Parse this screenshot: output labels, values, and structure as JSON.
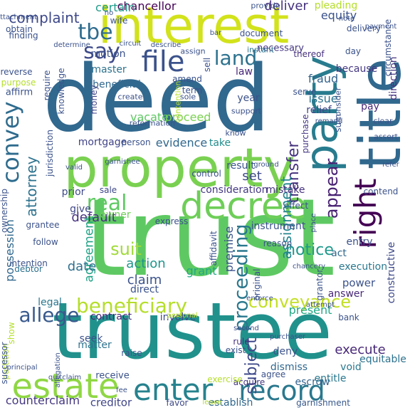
{
  "cloud": {
    "colors": {
      "background": "#ffffff",
      "deep_purple": "#440154",
      "indigo": "#3b528b",
      "slate_blue": "#31688e",
      "teal": "#21918c",
      "sea_green": "#35b779",
      "green": "#6ece58",
      "lime": "#b5de2b",
      "yellow": "#fde725"
    },
    "words": [
      {
        "text": "trust",
        "color": "#5ec962",
        "orient": "h"
      },
      {
        "text": "trustee",
        "color": "#21918c",
        "orient": "h"
      },
      {
        "text": "deed",
        "color": "#31688e",
        "orient": "h"
      },
      {
        "text": "property",
        "color": "#7ad151",
        "orient": "h"
      },
      {
        "text": "interest",
        "color": "#d2e21b",
        "orient": "h"
      },
      {
        "text": "title",
        "color": "#31688e",
        "orient": "v"
      },
      {
        "text": "decree",
        "color": "#6ece58",
        "orient": "h"
      },
      {
        "text": "party",
        "color": "#287c8e",
        "orient": "v"
      },
      {
        "text": "estate",
        "color": "#8fd744",
        "orient": "h"
      },
      {
        "text": "enter",
        "color": "#26828e",
        "orient": "h"
      },
      {
        "text": "record",
        "color": "#2a788e",
        "orient": "h"
      },
      {
        "text": "right",
        "color": "#440154",
        "orient": "v"
      },
      {
        "text": "beneficiary",
        "color": "#b5de2b",
        "orient": "h"
      },
      {
        "text": "conveyance",
        "color": "#c2df23",
        "orient": "h"
      },
      {
        "text": "file",
        "color": "#3b528b",
        "orient": "h"
      },
      {
        "text": "land",
        "color": "#2c728e",
        "orient": "h"
      },
      {
        "text": "say",
        "color": "#3e4a89",
        "orient": "h"
      },
      {
        "text": "tbe",
        "color": "#2f6c8e",
        "orient": "h"
      },
      {
        "text": "real",
        "color": "#5ec962",
        "orient": "h"
      },
      {
        "text": "convey",
        "color": "#2f6c8e",
        "orient": "v"
      },
      {
        "text": "proceeding",
        "color": "#2a788e",
        "orient": "v"
      },
      {
        "text": "transfer",
        "color": "#46327e",
        "orient": "v"
      },
      {
        "text": "notice",
        "color": "#1f988b",
        "orient": "h"
      },
      {
        "text": "suit",
        "color": "#a0da39",
        "orient": "h"
      },
      {
        "text": "allege",
        "color": "#38598c",
        "orient": "h"
      },
      {
        "text": "appear",
        "color": "#482173",
        "orient": "v"
      },
      {
        "text": "complaint",
        "color": "#3e4989",
        "orient": "h"
      },
      {
        "text": "chancellor",
        "color": "#440154",
        "orient": "h"
      },
      {
        "text": "deliver",
        "color": "#46327e",
        "orient": "h"
      },
      {
        "text": "equity",
        "color": "#3b528b",
        "orient": "h"
      },
      {
        "text": "attorney",
        "color": "#2c728e",
        "orient": "v"
      },
      {
        "text": "subject",
        "color": "#3e4989",
        "orient": "v"
      },
      {
        "text": "execute",
        "color": "#482878",
        "orient": "h"
      },
      {
        "text": "assignment",
        "color": "#25858e",
        "orient": "v"
      },
      {
        "text": "premise",
        "color": "#3b528b",
        "orient": "v"
      },
      {
        "text": "agreement",
        "color": "#20a386",
        "orient": "v"
      },
      {
        "text": "possession",
        "color": "#31688e",
        "orient": "v"
      },
      {
        "text": "default",
        "color": "#46327e",
        "orient": "h"
      },
      {
        "text": "evidence",
        "color": "#31688e",
        "orient": "h"
      },
      {
        "text": "take",
        "color": "#228d8d",
        "orient": "h"
      },
      {
        "text": "proceed",
        "color": "#7ad151",
        "orient": "h"
      },
      {
        "text": "vacate",
        "color": "#5ec962",
        "orient": "h"
      },
      {
        "text": "mortgage",
        "color": "#414487",
        "orient": "h"
      },
      {
        "text": "certain",
        "color": "#1e9b8a",
        "orient": "h"
      },
      {
        "text": "motion",
        "color": "#3b528b",
        "orient": "h"
      },
      {
        "text": "master",
        "color": "#2c728e",
        "orient": "h"
      },
      {
        "text": "beneficial",
        "color": "#31688e",
        "orient": "h"
      },
      {
        "text": "law",
        "color": "#482878",
        "orient": "h"
      },
      {
        "text": "fraud",
        "color": "#33638d",
        "orient": "h"
      },
      {
        "text": "because",
        "color": "#453781",
        "orient": "h"
      },
      {
        "text": "issue",
        "color": "#2c728e",
        "orient": "h"
      },
      {
        "text": "relief",
        "color": "#404688",
        "orient": "h"
      },
      {
        "text": "set",
        "color": "#3e4a89",
        "orient": "h"
      },
      {
        "text": "action",
        "color": "#1f958b",
        "orient": "h"
      },
      {
        "text": "claim",
        "color": "#3b528b",
        "orient": "h"
      },
      {
        "text": "grant",
        "color": "#22a884",
        "orient": "h"
      },
      {
        "text": "date",
        "color": "#2d708e",
        "orient": "h"
      },
      {
        "text": "owner",
        "color": "#6ece58",
        "orient": "h"
      },
      {
        "text": "give",
        "color": "#404688",
        "orient": "h"
      },
      {
        "text": "execution",
        "color": "#2a788e",
        "orient": "h"
      },
      {
        "text": "act",
        "color": "#31688e",
        "orient": "h"
      },
      {
        "text": "power",
        "color": "#3b528b",
        "orient": "h"
      },
      {
        "text": "answer",
        "color": "#482878",
        "orient": "h"
      },
      {
        "text": "constructive",
        "color": "#3e4989",
        "orient": "v"
      },
      {
        "text": "present",
        "color": "#22a884",
        "orient": "h"
      },
      {
        "text": "direct",
        "color": "#3b528b",
        "orient": "h"
      },
      {
        "text": "legal",
        "color": "#2a788e",
        "orient": "h"
      },
      {
        "text": "contract",
        "color": "#482878",
        "orient": "h"
      },
      {
        "text": "involve",
        "color": "#3e4a89",
        "orient": "h"
      },
      {
        "text": "seek",
        "color": "#3b528b",
        "orient": "h"
      },
      {
        "text": "matter",
        "color": "#2c728e",
        "orient": "h"
      },
      {
        "text": "deny",
        "color": "#3b528b",
        "orient": "h"
      },
      {
        "text": "dismiss",
        "color": "#31688e",
        "orient": "h"
      },
      {
        "text": "acquire",
        "color": "#453781",
        "orient": "h"
      },
      {
        "text": "escrow",
        "color": "#33638d",
        "orient": "h"
      },
      {
        "text": "entitle",
        "color": "#2a788e",
        "orient": "h"
      },
      {
        "text": "void",
        "color": "#2a788e",
        "orient": "h"
      },
      {
        "text": "equitable",
        "color": "#2c728e",
        "orient": "h"
      },
      {
        "text": "counterclaim",
        "color": "#453781",
        "orient": "h"
      },
      {
        "text": "creditor",
        "color": "#404688",
        "orient": "h"
      },
      {
        "text": "favor",
        "color": "#3e4a89",
        "orient": "h"
      },
      {
        "text": "establish",
        "color": "#31688e",
        "orient": "h"
      },
      {
        "text": "garnishment",
        "color": "#38598c",
        "orient": "h"
      },
      {
        "text": "receive",
        "color": "#3b528b",
        "orient": "h"
      },
      {
        "text": "rule",
        "color": "#46327e",
        "orient": "h"
      },
      {
        "text": "partition",
        "color": "#b5de2b",
        "orient": "v"
      },
      {
        "text": "consideration",
        "color": "#443983",
        "orient": "h"
      },
      {
        "text": "mistake",
        "color": "#46327e",
        "orient": "h"
      },
      {
        "text": "result",
        "color": "#3b528b",
        "orient": "h"
      },
      {
        "text": "sale",
        "color": "#3e4989",
        "orient": "h"
      },
      {
        "text": "prior",
        "color": "#3e4a89",
        "orient": "h"
      },
      {
        "text": "instrument",
        "color": "#3b528b",
        "orient": "h"
      },
      {
        "text": "reason",
        "color": "#3b528b",
        "orient": "h"
      },
      {
        "text": "entry",
        "color": "#3b528b",
        "orient": "h"
      },
      {
        "text": "money",
        "color": "#404688",
        "orient": "v"
      },
      {
        "text": "year",
        "color": "#3b528b",
        "orient": "h"
      },
      {
        "text": "serve",
        "color": "#3b528b",
        "orient": "h"
      },
      {
        "text": "pay",
        "color": "#482878",
        "orient": "h"
      },
      {
        "text": "purchase",
        "color": "#453781",
        "orient": "v"
      },
      {
        "text": "direction",
        "color": "#46327e",
        "orient": "v"
      },
      {
        "text": "amend",
        "color": "#3b528b",
        "orient": "h"
      },
      {
        "text": "necessary",
        "color": "#453781",
        "orient": "h"
      },
      {
        "text": "thereof",
        "color": "#46327e",
        "orient": "h"
      },
      {
        "text": "day",
        "color": "#3b528b",
        "orient": "h"
      },
      {
        "text": "assign",
        "color": "#3b528b",
        "orient": "h"
      },
      {
        "text": "instant",
        "color": "#2c728e",
        "orient": "h"
      },
      {
        "text": "wife",
        "color": "#3b528b",
        "orient": "h"
      },
      {
        "text": "obtain",
        "color": "#3b528b",
        "orient": "h"
      },
      {
        "text": "finding",
        "color": "#3b528b",
        "orient": "h"
      },
      {
        "text": "pleading",
        "color": "#b5de2b",
        "orient": "h"
      },
      {
        "text": "provide",
        "color": "#3b528b",
        "orient": "h"
      },
      {
        "text": "contend",
        "color": "#3b528b",
        "orient": "h"
      },
      {
        "text": "affidavit",
        "color": "#3b528b",
        "orient": "v"
      },
      {
        "text": "successor",
        "color": "#3b528b",
        "orient": "v"
      },
      {
        "text": "follow",
        "color": "#3b528b",
        "orient": "h"
      },
      {
        "text": "grantee",
        "color": "#3b528b",
        "orient": "h"
      },
      {
        "text": "original",
        "color": "#3b528b",
        "orient": "v"
      },
      {
        "text": "debtor",
        "color": "#2c728e",
        "orient": "h"
      },
      {
        "text": "grantor",
        "color": "#3b528b",
        "orient": "v"
      },
      {
        "text": "effect",
        "color": "#3b528b",
        "orient": "h"
      },
      {
        "text": "purpose",
        "color": "#b5de2b",
        "orient": "h"
      },
      {
        "text": "affirm",
        "color": "#3b528b",
        "orient": "h"
      },
      {
        "text": "reverse",
        "color": "#3b528b",
        "orient": "h"
      },
      {
        "text": "knowledge",
        "color": "#3b528b",
        "orient": "v"
      },
      {
        "text": "require",
        "color": "#3b528b",
        "orient": "v"
      },
      {
        "text": "jurisdiction",
        "color": "#3b528b",
        "orient": "v"
      },
      {
        "text": "attachment",
        "color": "#3b528b",
        "orient": "h"
      },
      {
        "text": "delivery",
        "color": "#3b528b",
        "orient": "h"
      },
      {
        "text": "payment",
        "color": "#3b528b",
        "orient": "h"
      },
      {
        "text": "document",
        "color": "#3b528b",
        "orient": "h"
      },
      {
        "text": "circumstance",
        "color": "#3b528b",
        "orient": "v"
      },
      {
        "text": "sell",
        "color": "#3b528b",
        "orient": "v"
      },
      {
        "text": "term",
        "color": "#3b528b",
        "orient": "h"
      },
      {
        "text": "consider",
        "color": "#3b528b",
        "orient": "v"
      },
      {
        "text": "clear",
        "color": "#3b528b",
        "orient": "h"
      },
      {
        "text": "assert",
        "color": "#3b528b",
        "orient": "h"
      },
      {
        "text": "support",
        "color": "#3b528b",
        "orient": "h"
      },
      {
        "text": "sum",
        "color": "#3b528b",
        "orient": "v"
      },
      {
        "text": "create",
        "color": "#3b528b",
        "orient": "h"
      },
      {
        "text": "sole",
        "color": "#3b528b",
        "orient": "h"
      },
      {
        "text": "reformation",
        "color": "#3b528b",
        "orient": "h"
      },
      {
        "text": "contention",
        "color": "#b5de2b",
        "orient": "v"
      },
      {
        "text": "know",
        "color": "#3b528b",
        "orient": "h"
      },
      {
        "text": "garnishee",
        "color": "#3b528b",
        "orient": "h"
      },
      {
        "text": "person",
        "color": "#3b528b",
        "orient": "h"
      },
      {
        "text": "ground",
        "color": "#3b528b",
        "orient": "h"
      },
      {
        "text": "valid",
        "color": "#3b528b",
        "orient": "h"
      },
      {
        "text": "control",
        "color": "#3b528b",
        "orient": "h"
      },
      {
        "text": "ownership",
        "color": "#3b528b",
        "orient": "v"
      },
      {
        "text": "express",
        "color": "#3b528b",
        "orient": "h"
      },
      {
        "text": "place",
        "color": "#3b528b",
        "orient": "v"
      },
      {
        "text": "intention",
        "color": "#3b528b",
        "orient": "h"
      },
      {
        "text": "chancery",
        "color": "#3b528b",
        "orient": "h"
      },
      {
        "text": "principal",
        "color": "#3b528b",
        "orient": "h"
      },
      {
        "text": "quitclaim",
        "color": "#3b528b",
        "orient": "h"
      },
      {
        "text": "allegation",
        "color": "#3b528b",
        "orient": "v"
      },
      {
        "text": "raise",
        "color": "#3b528b",
        "orient": "h"
      },
      {
        "text": "show",
        "color": "#b5de2b",
        "orient": "v"
      },
      {
        "text": "purchaser",
        "color": "#3b528b",
        "orient": "h"
      },
      {
        "text": "exist",
        "color": "#3b528b",
        "orient": "h"
      },
      {
        "text": "agree",
        "color": "#3b528b",
        "orient": "h"
      },
      {
        "text": "bank",
        "color": "#3b528b",
        "orient": "h"
      },
      {
        "text": "fee",
        "color": "#3b528b",
        "orient": "h"
      },
      {
        "text": "exercise",
        "color": "#b5de2b",
        "orient": "h"
      },
      {
        "text": "leave",
        "color": "#b5de2b",
        "orient": "h"
      },
      {
        "text": "personal",
        "color": "#b5de2b",
        "orient": "h"
      },
      {
        "text": "second",
        "color": "#3b528b",
        "orient": "h"
      },
      {
        "text": "enforce",
        "color": "#3b528b",
        "orient": "h"
      },
      {
        "text": "attempt",
        "color": "#3b528b",
        "orient": "h"
      },
      {
        "text": "remand",
        "color": "#3b528b",
        "orient": "h"
      },
      {
        "text": "determine",
        "color": "#3b528b",
        "orient": "h"
      },
      {
        "text": "circuit",
        "color": "#3b528b",
        "orient": "h"
      },
      {
        "text": "describe",
        "color": "#3b528b",
        "orient": "h"
      },
      {
        "text": "note",
        "color": "#3b528b",
        "orient": "h"
      },
      {
        "text": "bar",
        "color": "#3b528b",
        "orient": "h"
      },
      {
        "text": "no",
        "color": "#3b528b",
        "orient": "h"
      },
      {
        "text": "refer",
        "color": "#3b528b",
        "orient": "h"
      }
    ]
  }
}
